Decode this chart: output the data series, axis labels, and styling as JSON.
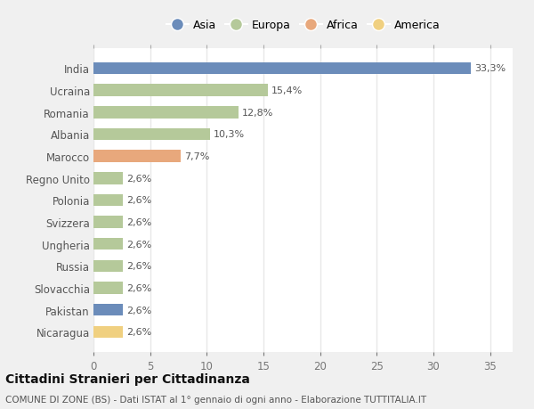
{
  "title": "Cittadini Stranieri per Cittadinanza",
  "subtitle": "COMUNE DI ZONE (BS) - Dati ISTAT al 1° gennaio di ogni anno - Elaborazione TUTTITALIA.IT",
  "categories": [
    "India",
    "Ucraina",
    "Romania",
    "Albania",
    "Marocco",
    "Regno Unito",
    "Polonia",
    "Svizzera",
    "Ungheria",
    "Russia",
    "Slovacchia",
    "Pakistan",
    "Nicaragua"
  ],
  "values": [
    33.3,
    15.4,
    12.8,
    10.3,
    7.7,
    2.6,
    2.6,
    2.6,
    2.6,
    2.6,
    2.6,
    2.6,
    2.6
  ],
  "labels": [
    "33,3%",
    "15,4%",
    "12,8%",
    "10,3%",
    "7,7%",
    "2,6%",
    "2,6%",
    "2,6%",
    "2,6%",
    "2,6%",
    "2,6%",
    "2,6%",
    "2,6%"
  ],
  "colors": [
    "#6b8cba",
    "#b5c99a",
    "#b5c99a",
    "#b5c99a",
    "#e8a87c",
    "#b5c99a",
    "#b5c99a",
    "#b5c99a",
    "#b5c99a",
    "#b5c99a",
    "#b5c99a",
    "#6b8cba",
    "#f0d080"
  ],
  "legend_labels": [
    "Asia",
    "Europa",
    "Africa",
    "America"
  ],
  "legend_colors": [
    "#6b8cba",
    "#b5c99a",
    "#e8a87c",
    "#f0d080"
  ],
  "xlim": [
    0,
    37
  ],
  "xticks": [
    0,
    5,
    10,
    15,
    20,
    25,
    30,
    35
  ],
  "outer_bg": "#f0f0f0",
  "inner_bg": "#ffffff",
  "grid_color": "#e8e8e8",
  "bar_height": 0.55,
  "label_fontsize": 8,
  "tick_fontsize": 8.5,
  "title_fontsize": 10,
  "subtitle_fontsize": 7.5
}
